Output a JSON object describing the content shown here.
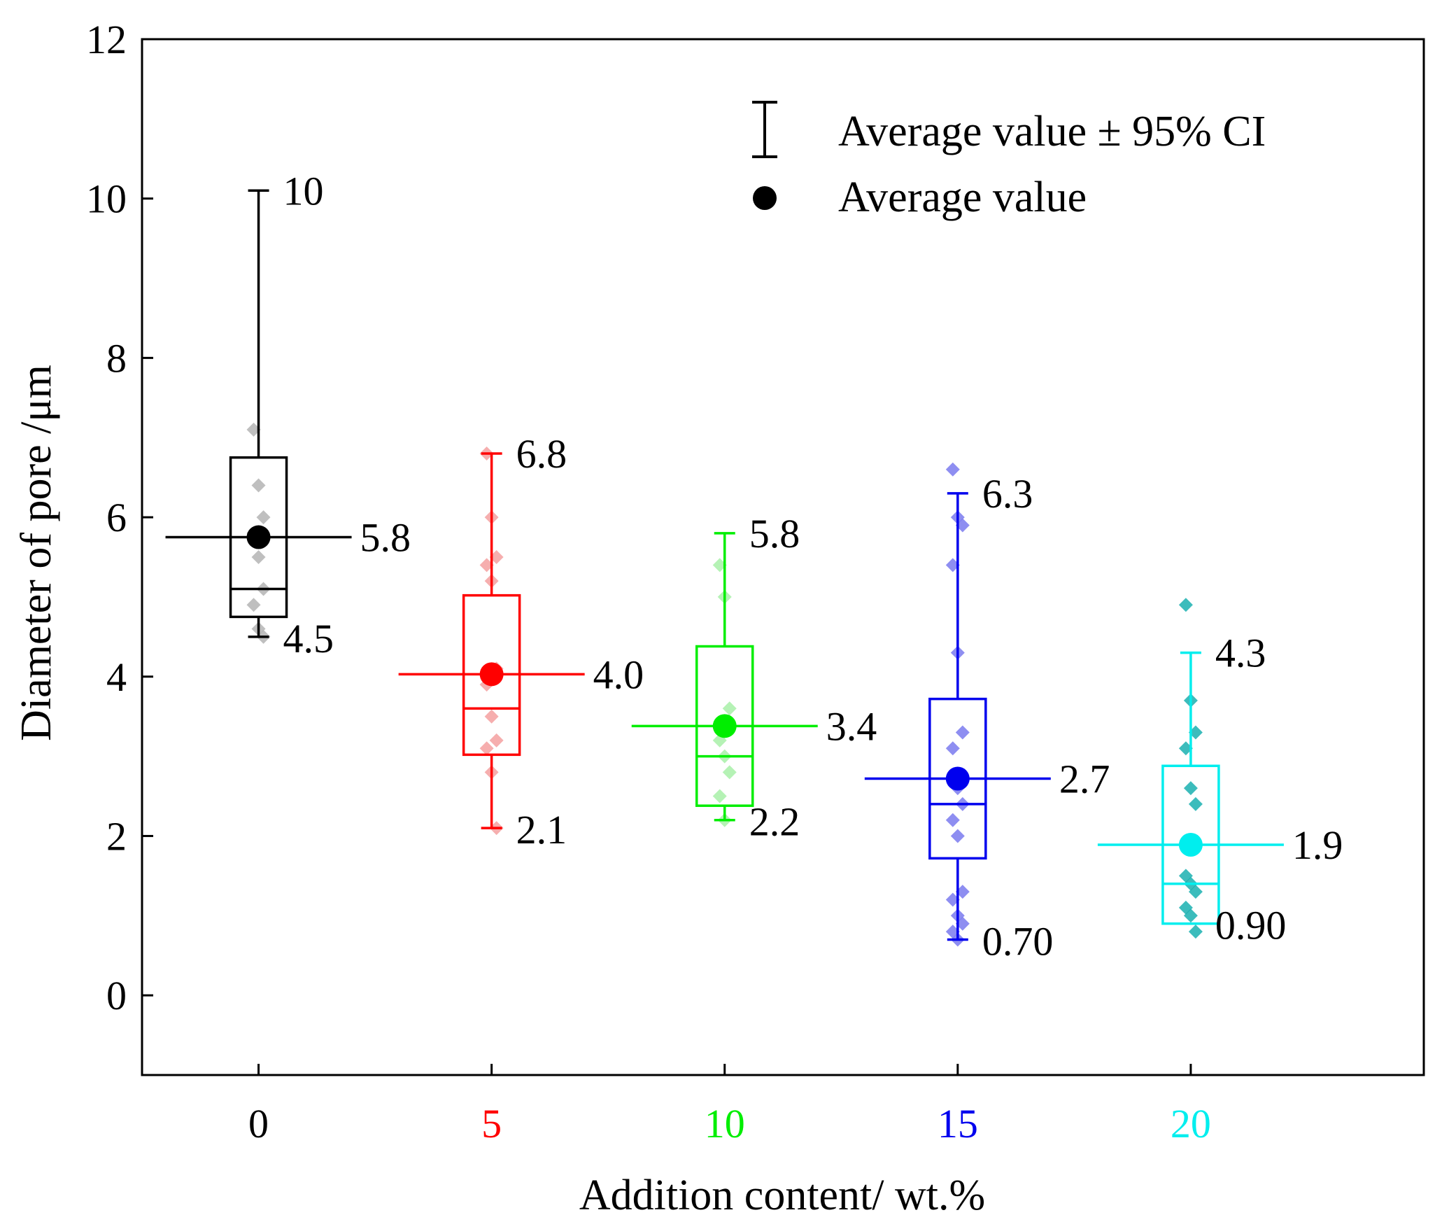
{
  "chart_data": {
    "type": "box",
    "title": "",
    "xlabel": "Addition content/ wt.%",
    "ylabel": "Diameter of pore /μm",
    "ylim": [
      -1,
      12
    ],
    "yticks": [
      0,
      2,
      4,
      6,
      8,
      10,
      12
    ],
    "xlim": [
      -2.5,
      25
    ],
    "legend": {
      "position": "top-right",
      "items": [
        {
          "marker": "error-bar",
          "label": "Average value ± 95% CI"
        },
        {
          "marker": "dot",
          "label": "Average value"
        }
      ]
    },
    "groups": [
      {
        "x": 0,
        "tick_label": "0",
        "color": "#000000",
        "point_color": "#b4b4b4",
        "q1": 4.75,
        "median": 5.1,
        "q3": 6.75,
        "whisker_low": 4.5,
        "whisker_high": 10.1,
        "mean": 5.75,
        "labels": {
          "high": "10",
          "mean": "5.8",
          "low": "4.5"
        },
        "points": [
          7.1,
          6.4,
          6.0,
          5.8,
          5.5,
          5.1,
          4.9,
          4.6,
          4.5
        ]
      },
      {
        "x": 5,
        "tick_label": "5",
        "color": "#ff0000",
        "point_color": "#f5a0a0",
        "q1": 3.02,
        "median": 3.6,
        "q3": 5.02,
        "whisker_low": 2.1,
        "whisker_high": 6.8,
        "mean": 4.03,
        "labels": {
          "high": "6.8",
          "mean": "4.0",
          "low": "2.1"
        },
        "points": [
          6.8,
          6.0,
          5.5,
          5.4,
          5.2,
          4.1,
          3.9,
          3.5,
          3.2,
          3.1,
          2.8,
          2.1
        ]
      },
      {
        "x": 10,
        "tick_label": "10",
        "color": "#00ee00",
        "point_color": "#a8f0a8",
        "q1": 2.38,
        "median": 3.0,
        "q3": 4.38,
        "whisker_low": 2.2,
        "whisker_high": 5.8,
        "mean": 3.38,
        "labels": {
          "high": "5.8",
          "mean": "3.4",
          "low": "2.2"
        },
        "points": [
          5.4,
          5.0,
          3.6,
          3.2,
          3.0,
          2.8,
          2.5,
          2.2
        ]
      },
      {
        "x": 15,
        "tick_label": "15",
        "color": "#0000ee",
        "point_color": "#7a7aee",
        "q1": 1.72,
        "median": 2.4,
        "q3": 3.72,
        "whisker_low": 0.7,
        "whisker_high": 6.3,
        "mean": 2.72,
        "labels": {
          "high": "6.3",
          "mean": "2.7",
          "low": "0.70"
        },
        "points": [
          6.6,
          6.0,
          5.9,
          5.4,
          4.3,
          3.3,
          3.1,
          2.6,
          2.4,
          2.2,
          2.0,
          1.3,
          1.2,
          1.0,
          0.9,
          0.8,
          0.7
        ]
      },
      {
        "x": 20,
        "tick_label": "20",
        "color": "#00eeee",
        "point_color": "#1ab0b0",
        "q1": 0.9,
        "median": 1.4,
        "q3": 2.88,
        "whisker_low": 0.9,
        "whisker_high": 4.3,
        "mean": 1.89,
        "labels": {
          "high": "4.3",
          "mean": "1.9",
          "low": "0.90"
        },
        "points": [
          4.9,
          3.7,
          3.3,
          3.1,
          2.6,
          2.4,
          1.5,
          1.4,
          1.3,
          1.1,
          1.0,
          0.8
        ]
      }
    ]
  }
}
